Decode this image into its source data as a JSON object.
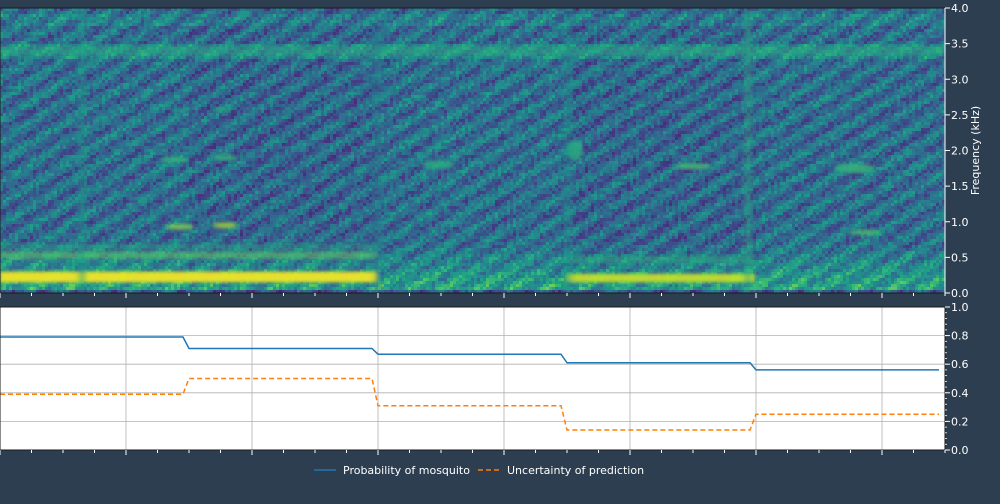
{
  "chart_data": [
    {
      "type": "heatmap",
      "title": "",
      "xlabel": "",
      "ylabel": "Frequency (kHz)",
      "ylim": [
        0,
        4
      ],
      "yticks": [
        "0.0",
        "0.5",
        "1.0",
        "1.5",
        "2.0",
        "2.5",
        "3.0",
        "3.5",
        "4.0"
      ],
      "colormap": "viridis",
      "segments": 5,
      "grid": false
    },
    {
      "type": "line",
      "title": "",
      "xlabel": "",
      "ylabel": "",
      "ylim": [
        0,
        1.0
      ],
      "yticks": [
        "0.0",
        "0.2",
        "0.4",
        "0.6",
        "0.8",
        "1.0"
      ],
      "grid": true,
      "legend_position": "bottom-center",
      "x": [
        0,
        1,
        2,
        3,
        4
      ],
      "series": [
        {
          "name": "Probability of mosquito",
          "style": "solid",
          "color": "#1f77b4",
          "values": [
            0.79,
            0.71,
            0.67,
            0.61,
            0.56
          ]
        },
        {
          "name": "Uncertainty of prediction",
          "style": "dashed",
          "color": "#ff7f0e",
          "values": [
            0.39,
            0.5,
            0.31,
            0.14,
            0.25
          ]
        }
      ]
    }
  ]
}
